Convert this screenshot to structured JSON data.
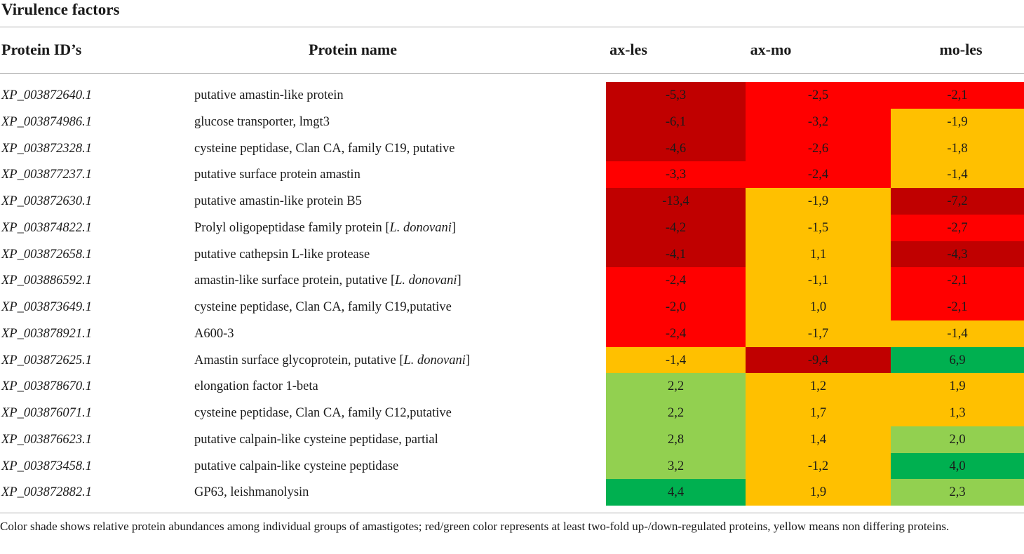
{
  "title": "Virulence factors",
  "headers": {
    "protein_id": "Protein ID’s",
    "protein_name": "Protein name",
    "col1": "ax-les",
    "col2": "ax-mo",
    "col3": "mo-les"
  },
  "colors": {
    "dark_red": "#c00000",
    "red": "#ff0000",
    "yellow": "#ffc000",
    "light_green": "#92d050",
    "green": "#00b050"
  },
  "rows": [
    {
      "id": "XP_003872640.1",
      "name": "putative amastin-like protein",
      "species": "",
      "v1": "-5,3",
      "c1": "dark_red",
      "v2": "-2,5",
      "c2": "red",
      "v3": "-2,1",
      "c3": "red"
    },
    {
      "id": "XP_003874986.1",
      "name": "glucose transporter, lmgt3",
      "species": "",
      "v1": "-6,1",
      "c1": "dark_red",
      "v2": "-3,2",
      "c2": "red",
      "v3": "-1,9",
      "c3": "yellow"
    },
    {
      "id": "XP_003872328.1",
      "name": "cysteine peptidase, Clan CA, family C19, putative",
      "species": "",
      "v1": "-4,6",
      "c1": "dark_red",
      "v2": "-2,6",
      "c2": "red",
      "v3": "-1,8",
      "c3": "yellow"
    },
    {
      "id": "XP_003877237.1",
      "name": "putative surface protein amastin",
      "species": "",
      "v1": "-3,3",
      "c1": "red",
      "v2": "-2,4",
      "c2": "red",
      "v3": "-1,4",
      "c3": "yellow"
    },
    {
      "id": "XP_003872630.1",
      "name": "putative amastin-like protein B5",
      "species": "",
      "v1": "-13,4",
      "c1": "dark_red",
      "v2": "-1,9",
      "c2": "yellow",
      "v3": "-7,2",
      "c3": "dark_red"
    },
    {
      "id": "XP_003874822.1",
      "name": "Prolyl oligopeptidase family protein [",
      "species": "L. donovani",
      "v1": "-4,2",
      "c1": "dark_red",
      "v2": "-1,5",
      "c2": "yellow",
      "v3": "-2,7",
      "c3": "red"
    },
    {
      "id": "XP_003872658.1",
      "name": "putative cathepsin L-like protease",
      "species": "",
      "v1": "-4,1",
      "c1": "dark_red",
      "v2": "1,1",
      "c2": "yellow",
      "v3": "-4,3",
      "c3": "dark_red"
    },
    {
      "id": "XP_003886592.1",
      "name": "amastin-like surface protein, putative [",
      "species": "L. donovani",
      "v1": "-2,4",
      "c1": "red",
      "v2": "-1,1",
      "c2": "yellow",
      "v3": "-2,1",
      "c3": "red"
    },
    {
      "id": "XP_003873649.1",
      "name": "cysteine peptidase, Clan CA, family C19,putative",
      "species": "",
      "v1": "-2,0",
      "c1": "red",
      "v2": "1,0",
      "c2": "yellow",
      "v3": "-2,1",
      "c3": "red"
    },
    {
      "id": "XP_003878921.1",
      "name": "A600-3",
      "species": "",
      "v1": "-2,4",
      "c1": "red",
      "v2": "-1,7",
      "c2": "yellow",
      "v3": "-1,4",
      "c3": "yellow"
    },
    {
      "id": "XP_003872625.1",
      "name": "Amastin surface glycoprotein, putative [",
      "species": "L. donovani",
      "v1": "-1,4",
      "c1": "yellow",
      "v2": "-9,4",
      "c2": "dark_red",
      "v3": "6,9",
      "c3": "green"
    },
    {
      "id": "XP_003878670.1",
      "name": "elongation factor 1-beta",
      "species": "",
      "v1": "2,2",
      "c1": "light_green",
      "v2": "1,2",
      "c2": "yellow",
      "v3": "1,9",
      "c3": "yellow"
    },
    {
      "id": "XP_003876071.1",
      "name": "cysteine peptidase, Clan CA, family C12,putative",
      "species": "",
      "v1": "2,2",
      "c1": "light_green",
      "v2": "1,7",
      "c2": "yellow",
      "v3": "1,3",
      "c3": "yellow"
    },
    {
      "id": "XP_003876623.1",
      "name": "putative calpain-like cysteine peptidase, partial",
      "species": "",
      "v1": "2,8",
      "c1": "light_green",
      "v2": "1,4",
      "c2": "yellow",
      "v3": "2,0",
      "c3": "light_green"
    },
    {
      "id": "XP_003873458.1",
      "name": "putative calpain-like cysteine peptidase",
      "species": "",
      "v1": "3,2",
      "c1": "light_green",
      "v2": "-1,2",
      "c2": "yellow",
      "v3": "4,0",
      "c3": "green"
    },
    {
      "id": "XP_003872882.1",
      "name": "GP63, leishmanolysin",
      "species": "",
      "v1": "4,4",
      "c1": "green",
      "v2": "1,9",
      "c2": "yellow",
      "v3": "2,3",
      "c3": "light_green"
    }
  ],
  "footnote": "Color shade shows relative protein abundances among individual groups of amastigotes; red/green color represents at least two-fold up-/down-regulated proteins, yellow means non differing proteins."
}
